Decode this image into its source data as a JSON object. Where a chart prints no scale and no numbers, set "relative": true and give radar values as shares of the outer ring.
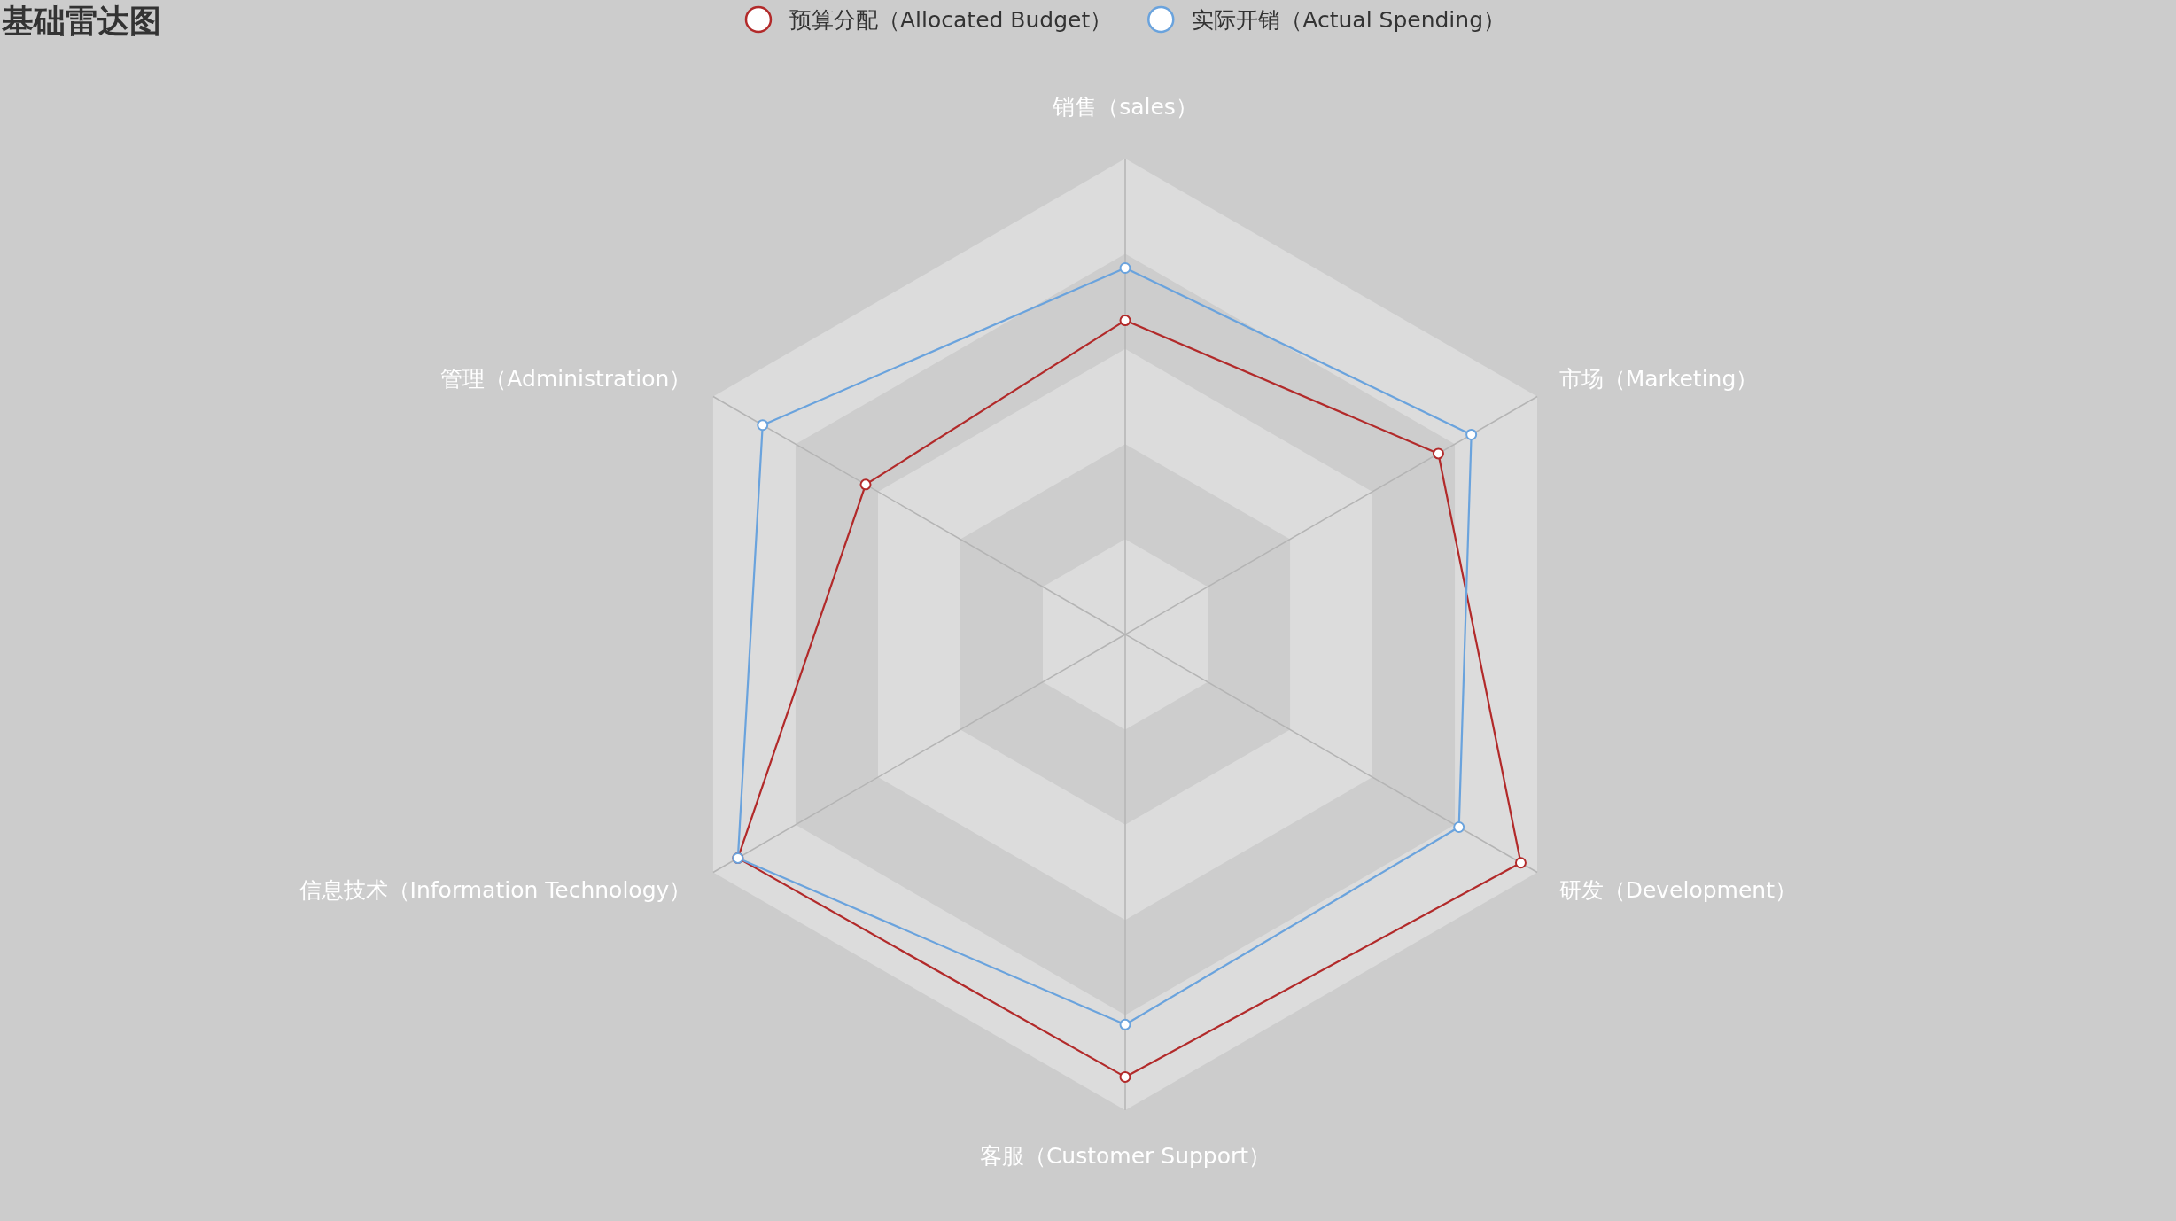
{
  "chart_data": {
    "type": "radar",
    "title": "基础雷达图",
    "relative": true,
    "legend": "top",
    "marker": "circle",
    "categories": [
      "销售（sales）",
      "市场（Marketing）",
      "研发（Development）",
      "客服（Customer Support）",
      "信息技术（Information Technology）",
      "管理（Administration）"
    ],
    "series": [
      {
        "name": "预算分配（Allocated Budget）",
        "color": "#b22a2a",
        "values": [
          0.66,
          0.76,
          0.96,
          0.93,
          0.94,
          0.63
        ]
      },
      {
        "name": "实际开销（Actual Spending）",
        "color": "#6aa3dd",
        "values": [
          0.77,
          0.84,
          0.81,
          0.82,
          0.94,
          0.88
        ]
      }
    ]
  }
}
